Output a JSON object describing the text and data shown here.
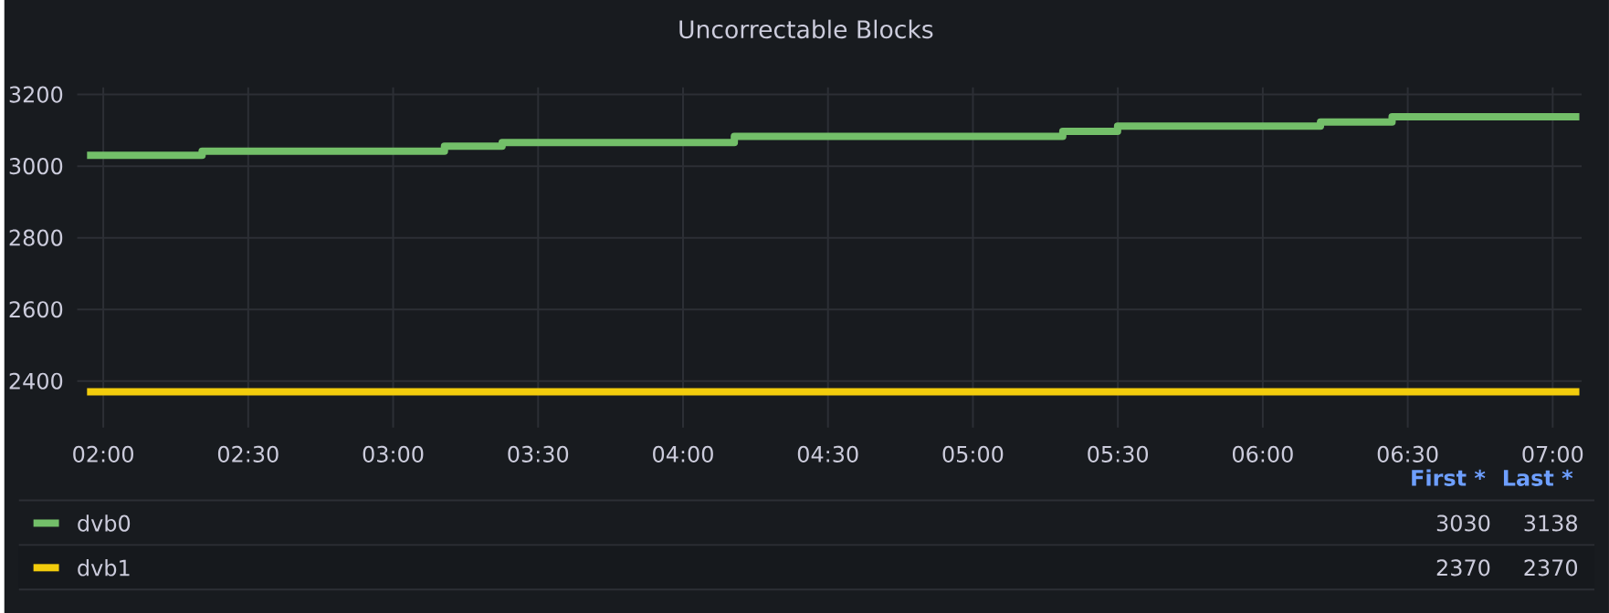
{
  "chart_data": {
    "type": "step",
    "title": "Uncorrectable Blocks",
    "xlim": [
      1.91,
      7.1
    ],
    "ylim": [
      2270,
      3220
    ],
    "xticks": [
      {
        "value": 2,
        "label": "02:00"
      },
      {
        "value": 2.5,
        "label": "02:30"
      },
      {
        "value": 3,
        "label": "03:00"
      },
      {
        "value": 3.5,
        "label": "03:30"
      },
      {
        "value": 4,
        "label": "04:00"
      },
      {
        "value": 4.5,
        "label": "04:30"
      },
      {
        "value": 5,
        "label": "05:00"
      },
      {
        "value": 5.5,
        "label": "05:30"
      },
      {
        "value": 6,
        "label": "06:00"
      },
      {
        "value": 6.5,
        "label": "06:30"
      },
      {
        "value": 7,
        "label": "07:00"
      }
    ],
    "yticks": [
      2400,
      2600,
      2800,
      3000,
      3200
    ],
    "grid": true,
    "legend": "bottom",
    "series": [
      {
        "name": "dvb0",
        "color": "#73bf69",
        "x": [
          1.944,
          2.341,
          3.177,
          3.376,
          4.177,
          5.31,
          5.499,
          6.199,
          6.446,
          7.092
        ],
        "values": [
          3030,
          3042,
          3056,
          3066,
          3083,
          3097,
          3112,
          3123,
          3138,
          3138
        ]
      },
      {
        "name": "dvb1",
        "color": "#f2cc0c",
        "x": [
          1.944,
          7.092
        ],
        "values": [
          2370,
          2370
        ]
      }
    ],
    "annotations": [
      "First *",
      "Last *",
      "3030",
      "3138",
      "2370",
      "2370"
    ]
  }
}
